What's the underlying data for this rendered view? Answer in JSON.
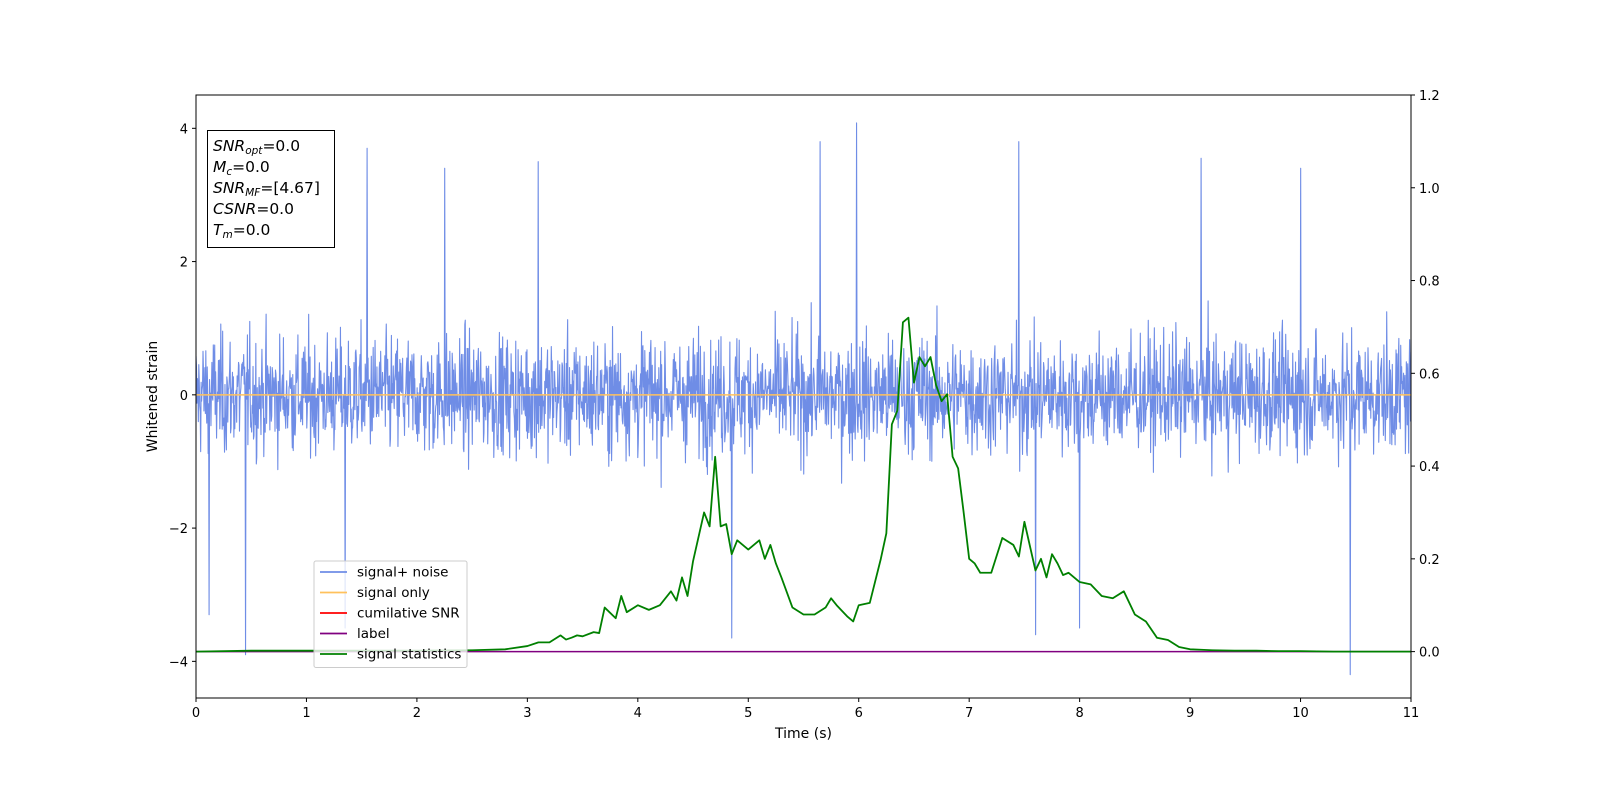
{
  "chart_data": {
    "type": "line",
    "xlabel": "Time (s)",
    "ylabel": "Whitened strain",
    "xlim": [
      0,
      11
    ],
    "ylim_left": [
      -4.55,
      4.5
    ],
    "ylim_right": [
      -0.1,
      1.2
    ],
    "x_ticks": [
      0,
      1,
      2,
      3,
      4,
      5,
      6,
      7,
      8,
      9,
      10,
      11
    ],
    "x_tick_labels": [
      "0",
      "1",
      "2",
      "3",
      "4",
      "5",
      "6",
      "7",
      "8",
      "9",
      "10",
      "11"
    ],
    "y_left_ticks": [
      -4,
      -2,
      0,
      2,
      4
    ],
    "y_left_tick_labels": [
      "−4",
      "−2",
      "0",
      "2",
      "4"
    ],
    "y_right_ticks": [
      0.0,
      0.2,
      0.4,
      0.6,
      0.8,
      1.0,
      1.2
    ],
    "y_right_tick_labels": [
      "0.0",
      "0.2",
      "0.4",
      "0.6",
      "0.8",
      "1.0",
      "1.2"
    ],
    "grid": false,
    "legend_position": "lower-left",
    "legend": [
      {
        "label": "signal+ noise",
        "color": "#6f8de6"
      },
      {
        "label": "signal only",
        "color": "#ffc15c"
      },
      {
        "label": "cumilative SNR",
        "color": "#ff0000"
      },
      {
        "label": "label",
        "color": "#800080"
      },
      {
        "label": "signal statistics",
        "color": "#008000"
      }
    ],
    "series": [
      {
        "name": "signal+ noise",
        "axis": "left",
        "color": "#6f8de6",
        "style": "dense-noise",
        "typical_range": [
          -2.0,
          2.1
        ],
        "spikes": [
          {
            "x": 0.45,
            "y": -3.9
          },
          {
            "x": 1.55,
            "y": 3.7
          },
          {
            "x": 5.65,
            "y": 3.8
          },
          {
            "x": 5.98,
            "y": 4.08
          },
          {
            "x": 7.45,
            "y": 3.8
          },
          {
            "x": 10.45,
            "y": -4.2
          },
          {
            "x": 0.12,
            "y": -3.3
          },
          {
            "x": 2.25,
            "y": 3.4
          },
          {
            "x": 3.1,
            "y": 3.5
          },
          {
            "x": 4.85,
            "y": -3.65
          },
          {
            "x": 7.6,
            "y": -3.6
          },
          {
            "x": 9.1,
            "y": 3.55
          },
          {
            "x": 1.35,
            "y": -3.5
          },
          {
            "x": 8.0,
            "y": -3.5
          },
          {
            "x": 10.0,
            "y": 3.4
          }
        ]
      },
      {
        "name": "signal only",
        "axis": "left",
        "color": "#ffc15c",
        "x": [
          0,
          11
        ],
        "y": [
          0,
          0
        ]
      },
      {
        "name": "label",
        "axis": "right",
        "color": "#800080",
        "x": [
          0,
          11
        ],
        "y": [
          0,
          0
        ]
      },
      {
        "name": "signal statistics",
        "axis": "right",
        "color": "#008000",
        "x": [
          0,
          0.5,
          1.0,
          1.5,
          2.0,
          2.5,
          2.8,
          3.0,
          3.1,
          3.2,
          3.3,
          3.35,
          3.4,
          3.45,
          3.5,
          3.6,
          3.65,
          3.7,
          3.8,
          3.85,
          3.9,
          4.0,
          4.1,
          4.2,
          4.3,
          4.35,
          4.4,
          4.45,
          4.5,
          4.6,
          4.65,
          4.7,
          4.75,
          4.8,
          4.85,
          4.9,
          5.0,
          5.1,
          5.15,
          5.2,
          5.25,
          5.3,
          5.4,
          5.5,
          5.6,
          5.7,
          5.75,
          5.8,
          5.9,
          5.95,
          6.0,
          6.1,
          6.2,
          6.25,
          6.3,
          6.35,
          6.4,
          6.45,
          6.5,
          6.55,
          6.6,
          6.65,
          6.7,
          6.75,
          6.8,
          6.85,
          6.9,
          6.95,
          7.0,
          7.05,
          7.1,
          7.2,
          7.3,
          7.4,
          7.45,
          7.5,
          7.6,
          7.65,
          7.7,
          7.75,
          7.8,
          7.85,
          7.9,
          8.0,
          8.1,
          8.2,
          8.3,
          8.4,
          8.5,
          8.6,
          8.7,
          8.8,
          8.9,
          9.0,
          9.1,
          9.2,
          9.4,
          9.6,
          9.8,
          10.0,
          10.3,
          10.6,
          10.9,
          11.0
        ],
        "y": [
          0.0,
          0.002,
          0.002,
          0.002,
          0.002,
          0.003,
          0.005,
          0.012,
          0.02,
          0.02,
          0.035,
          0.026,
          0.03,
          0.035,
          0.033,
          0.042,
          0.04,
          0.095,
          0.072,
          0.12,
          0.085,
          0.1,
          0.09,
          0.1,
          0.13,
          0.11,
          0.16,
          0.12,
          0.195,
          0.3,
          0.27,
          0.42,
          0.27,
          0.275,
          0.21,
          0.24,
          0.22,
          0.24,
          0.2,
          0.23,
          0.19,
          0.16,
          0.095,
          0.08,
          0.08,
          0.095,
          0.115,
          0.1,
          0.075,
          0.065,
          0.1,
          0.105,
          0.2,
          0.255,
          0.49,
          0.52,
          0.71,
          0.72,
          0.58,
          0.635,
          0.615,
          0.635,
          0.575,
          0.54,
          0.555,
          0.42,
          0.395,
          0.3,
          0.2,
          0.19,
          0.17,
          0.17,
          0.245,
          0.23,
          0.205,
          0.28,
          0.175,
          0.2,
          0.16,
          0.21,
          0.19,
          0.165,
          0.17,
          0.15,
          0.145,
          0.12,
          0.115,
          0.13,
          0.08,
          0.065,
          0.03,
          0.025,
          0.01,
          0.005,
          0.004,
          0.003,
          0.002,
          0.002,
          0.001,
          0.001,
          0.0,
          0.0,
          0.0,
          0.0
        ]
      }
    ]
  },
  "stats_box": [
    {
      "name": "SNR",
      "sub": "opt",
      "value": "=0.0"
    },
    {
      "name": "M",
      "sub": "c",
      "value": "=0.0"
    },
    {
      "name": "SNR",
      "sub": "MF",
      "value": "=[4.67]"
    },
    {
      "name": "CSNR",
      "sub": "",
      "value": "=0.0"
    },
    {
      "name": "T",
      "sub": "m",
      "value": "=0.0"
    }
  ]
}
